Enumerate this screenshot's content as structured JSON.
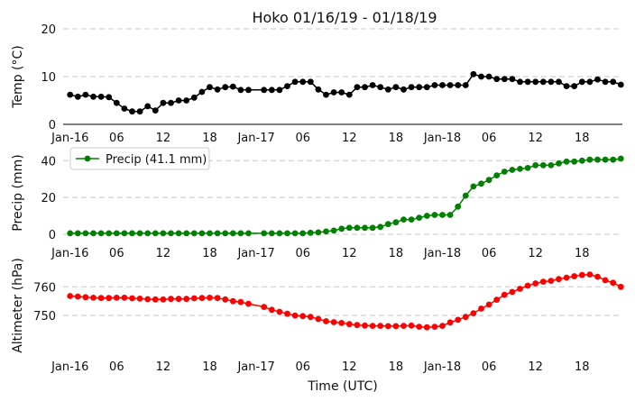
{
  "chart_data": {
    "type": "line",
    "title": "Hoko 01/16/19 - 01/18/19",
    "xlabel": "Time (UTC)",
    "grid": true,
    "x_tick_labels": [
      "Jan-16",
      "06",
      "12",
      "18",
      "Jan-17",
      "06",
      "12",
      "18",
      "Jan-18",
      "06",
      "12",
      "18"
    ],
    "x_tick_hours": [
      0,
      6,
      12,
      18,
      24,
      30,
      36,
      42,
      48,
      54,
      60,
      66
    ],
    "xlim": [
      -0.9,
      71.2
    ],
    "panels": [
      {
        "ylabel": "Temp ($^\\circ$C)",
        "ylim": [
          0,
          20
        ],
        "yticks": [
          0,
          10,
          20
        ],
        "legend": null,
        "series": [
          {
            "name": "",
            "color": "#000000",
            "x": [
              0,
              1,
              2,
              3,
              4,
              5,
              6,
              7,
              8,
              9,
              10,
              11,
              12,
              13,
              14,
              15,
              16,
              17,
              18,
              19,
              20,
              21,
              22,
              23,
              25,
              26,
              27,
              28,
              29,
              30,
              31,
              32,
              33,
              34,
              35,
              36,
              37,
              38,
              39,
              40,
              41,
              42,
              43,
              44,
              45,
              46,
              47,
              48,
              49,
              50,
              51,
              52,
              53,
              54,
              55,
              56,
              57,
              58,
              59,
              60,
              61,
              62,
              63,
              64,
              65,
              66,
              67,
              68,
              69,
              70,
              71
            ],
            "y": [
              6.2,
              5.8,
              6.2,
              5.8,
              5.8,
              5.7,
              4.5,
              3.3,
              2.7,
              2.7,
              3.8,
              2.9,
              4.5,
              4.5,
              5.0,
              5.0,
              5.6,
              6.8,
              7.8,
              7.3,
              7.8,
              7.9,
              7.2,
              7.2,
              7.2,
              7.2,
              7.2,
              8.0,
              8.9,
              8.9,
              8.9,
              7.3,
              6.2,
              6.7,
              6.7,
              6.2,
              7.8,
              7.8,
              8.2,
              7.8,
              7.3,
              7.8,
              7.3,
              7.8,
              7.8,
              7.8,
              8.2,
              8.2,
              8.2,
              8.2,
              8.2,
              10.5,
              10.0,
              10.0,
              9.5,
              9.5,
              9.5,
              8.9,
              8.9,
              8.9,
              8.9,
              8.9,
              8.9,
              8.0,
              8.0,
              8.9,
              8.9,
              9.4,
              8.9,
              8.9,
              8.3
            ]
          }
        ]
      },
      {
        "ylabel": "Precip (mm)",
        "ylim": [
          -1,
          46
        ],
        "yticks": [
          0,
          20,
          40
        ],
        "legend": {
          "placement": "upper left"
        },
        "series": [
          {
            "name": "Precip (41.1 mm)",
            "color": "#008000",
            "x": [
              0,
              1,
              2,
              3,
              4,
              5,
              6,
              7,
              8,
              9,
              10,
              11,
              12,
              13,
              14,
              15,
              16,
              17,
              18,
              19,
              20,
              21,
              22,
              23,
              25,
              26,
              27,
              28,
              29,
              30,
              31,
              32,
              33,
              34,
              35,
              36,
              37,
              38,
              39,
              40,
              41,
              42,
              43,
              44,
              45,
              46,
              47,
              48,
              49,
              50,
              51,
              52,
              53,
              54,
              55,
              56,
              57,
              58,
              59,
              60,
              61,
              62,
              63,
              64,
              65,
              66,
              67,
              68,
              69,
              70,
              71
            ],
            "y": [
              0.5,
              0.5,
              0.5,
              0.5,
              0.5,
              0.5,
              0.5,
              0.5,
              0.5,
              0.5,
              0.5,
              0.5,
              0.5,
              0.5,
              0.5,
              0.5,
              0.5,
              0.5,
              0.5,
              0.5,
              0.5,
              0.5,
              0.5,
              0.5,
              0.5,
              0.5,
              0.5,
              0.5,
              0.5,
              0.5,
              0.8,
              1.0,
              1.5,
              2.0,
              3.0,
              3.5,
              3.5,
              3.5,
              3.5,
              4.0,
              5.5,
              6.5,
              8.0,
              8.0,
              9.0,
              10.0,
              10.5,
              10.5,
              10.5,
              15.0,
              21.0,
              26.0,
              27.5,
              29.5,
              32.0,
              34.0,
              35.0,
              35.5,
              36.0,
              37.5,
              37.5,
              37.5,
              38.5,
              39.5,
              39.5,
              40.0,
              40.5,
              40.5,
              40.5,
              40.5,
              41.1
            ]
          }
        ]
      },
      {
        "ylabel": "Altimeter (hPa)",
        "ylim": [
          740,
          767
        ],
        "yticks": [
          750,
          760
        ],
        "legend": null,
        "series": [
          {
            "name": "",
            "color": "#ff0000",
            "x": [
              0,
              1,
              2,
              3,
              4,
              5,
              6,
              7,
              8,
              9,
              10,
              11,
              12,
              13,
              14,
              15,
              16,
              17,
              18,
              19,
              20,
              21,
              22,
              23,
              25,
              26,
              27,
              28,
              29,
              30,
              31,
              32,
              33,
              34,
              35,
              36,
              37,
              38,
              39,
              40,
              41,
              42,
              43,
              44,
              45,
              46,
              47,
              48,
              49,
              50,
              51,
              52,
              53,
              54,
              55,
              56,
              57,
              58,
              59,
              60,
              61,
              62,
              63,
              64,
              65,
              66,
              67,
              68,
              69,
              70,
              71
            ],
            "y": [
              756.8,
              756.6,
              756.4,
              756.2,
              756.1,
              756.1,
              756.2,
              756.2,
              756.0,
              755.9,
              755.7,
              755.6,
              755.6,
              755.8,
              755.8,
              755.8,
              756.0,
              756.1,
              756.2,
              756.1,
              755.6,
              755.0,
              754.7,
              754.1,
              753.0,
              752.0,
              751.3,
              750.6,
              750.0,
              749.8,
              749.5,
              748.8,
              748.0,
              747.7,
              747.4,
              747.0,
              746.7,
              746.5,
              746.4,
              746.4,
              746.3,
              746.3,
              746.4,
              746.5,
              746.1,
              745.9,
              746.1,
              746.4,
              747.6,
              748.5,
              749.5,
              750.8,
              752.4,
              753.8,
              755.5,
              757.2,
              758.2,
              759.3,
              760.4,
              761.2,
              761.8,
              762.1,
              762.7,
              763.2,
              763.7,
              764.1,
              764.3,
              763.5,
              762.3,
              761.4,
              760.0
            ]
          }
        ]
      }
    ]
  }
}
